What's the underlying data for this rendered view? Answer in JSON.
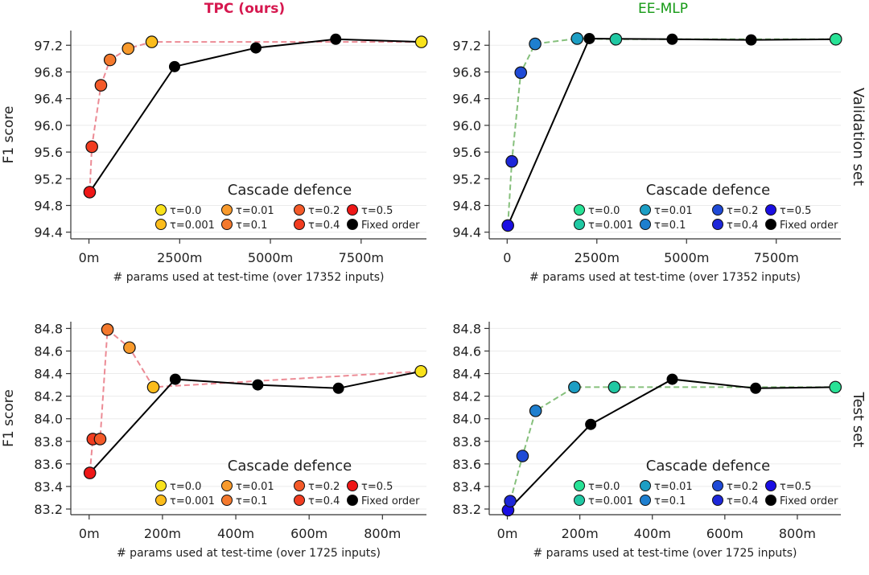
{
  "figure": {
    "col_titles": [
      {
        "text": "TPC (ours)",
        "color": "#d6184f"
      },
      {
        "text": "EE-MLP",
        "color": "#159a15"
      }
    ],
    "row_labels": [
      "Validation set",
      "Test set"
    ]
  },
  "legend": {
    "title": "Cascade defence",
    "entries": [
      "τ=0.0",
      "τ=0.01",
      "τ=0.2",
      "τ=0.5",
      "τ=0.001",
      "τ=0.1",
      "τ=0.4",
      "Fixed order"
    ]
  },
  "palettes": {
    "TPC": [
      "#f9e21b",
      "#fbbc1b",
      "#f89a2c",
      "#f4792d",
      "#f45a29",
      "#f13c20",
      "#ee1717"
    ],
    "EE-MLP": [
      "#28e296",
      "#20c8a3",
      "#1c9ec4",
      "#1e7fcf",
      "#1f4ad6",
      "#1d27d9",
      "#1a0ee3"
    ],
    "fixed": "#000000",
    "dash_TPC": "#ec8b95",
    "dash_EE": "#86c07c"
  },
  "chart_data": [
    {
      "type": "line",
      "model": "TPC",
      "split": "Validation set",
      "ylabel": "F1 score",
      "xlabel": "# params used at test-time (over 17352 inputs)",
      "xlim": [
        -500,
        9300
      ],
      "ylim": [
        94.3,
        97.42
      ],
      "xticks": [
        0,
        2500,
        5000,
        7500
      ],
      "xtick_labels": [
        "0m",
        "2500m",
        "5000m",
        "7500m"
      ],
      "yticks": [
        94.4,
        94.8,
        95.2,
        95.6,
        96.0,
        96.4,
        96.8,
        97.2
      ],
      "ytick_labels": [
        "94.4",
        "94.8",
        "95.2",
        "95.6",
        "96.0",
        "96.4",
        "96.8",
        "97.2"
      ],
      "cascade": [
        {
          "tau": "τ=0.5",
          "x": 20,
          "y": 95.0
        },
        {
          "tau": "τ=0.4",
          "x": 80,
          "y": 95.68
        },
        {
          "tau": "τ=0.2",
          "x": 330,
          "y": 96.6
        },
        {
          "tau": "τ=0.1",
          "x": 580,
          "y": 96.98
        },
        {
          "tau": "τ=0.01",
          "x": 1080,
          "y": 97.15
        },
        {
          "tau": "τ=0.001",
          "x": 1730,
          "y": 97.25
        },
        {
          "tau": "τ=0.0",
          "x": 9160,
          "y": 97.25
        }
      ],
      "fixed_order": {
        "x": [
          20,
          2360,
          4600,
          6800,
          9160
        ],
        "y": [
          95.0,
          96.88,
          97.16,
          97.29,
          97.25
        ]
      }
    },
    {
      "type": "line",
      "model": "EE-MLP",
      "split": "Validation set",
      "ylabel": "",
      "xlabel": "# params used at test-time (over 17352 inputs)",
      "xlim": [
        -500,
        9300
      ],
      "ylim": [
        94.3,
        97.42
      ],
      "xticks": [
        0,
        2500,
        5000,
        7500
      ],
      "xtick_labels": [
        "0",
        "2500m",
        "5000m",
        "7500m"
      ],
      "yticks": [
        94.4,
        94.8,
        95.2,
        95.6,
        96.0,
        96.4,
        96.8,
        97.2
      ],
      "ytick_labels": [
        "94.4",
        "94.8",
        "95.2",
        "95.6",
        "96.0",
        "96.4",
        "96.8",
        "97.2"
      ],
      "cascade": [
        {
          "tau": "τ=0.5",
          "x": 20,
          "y": 94.5
        },
        {
          "tau": "τ=0.4",
          "x": 130,
          "y": 95.46
        },
        {
          "tau": "τ=0.2",
          "x": 380,
          "y": 96.79
        },
        {
          "tau": "τ=0.1",
          "x": 780,
          "y": 97.22
        },
        {
          "tau": "τ=0.01",
          "x": 1950,
          "y": 97.3
        },
        {
          "tau": "τ=0.001",
          "x": 3030,
          "y": 97.29
        },
        {
          "tau": "τ=0.0",
          "x": 9160,
          "y": 97.29
        }
      ],
      "fixed_order": {
        "x": [
          20,
          2290,
          4600,
          6800,
          9160
        ],
        "y": [
          94.5,
          97.3,
          97.29,
          97.28,
          97.29
        ]
      }
    },
    {
      "type": "line",
      "model": "TPC",
      "split": "Test set",
      "ylabel": "F1 score",
      "xlabel": "# params used at test-time (over 1725 inputs)",
      "xlim": [
        -50,
        920
      ],
      "ylim": [
        83.15,
        84.86
      ],
      "xticks": [
        0,
        200,
        400,
        600,
        800
      ],
      "xtick_labels": [
        "0m",
        "200m",
        "400m",
        "600m",
        "800m"
      ],
      "yticks": [
        83.2,
        83.4,
        83.6,
        83.8,
        84.0,
        84.2,
        84.4,
        84.6,
        84.8
      ],
      "ytick_labels": [
        "83.2",
        "83.4",
        "83.6",
        "83.8",
        "84.0",
        "84.2",
        "84.4",
        "84.6",
        "84.8"
      ],
      "cascade": [
        {
          "tau": "τ=0.5",
          "x": 2,
          "y": 83.52
        },
        {
          "tau": "τ=0.4",
          "x": 10,
          "y": 83.82
        },
        {
          "tau": "τ=0.2",
          "x": 30,
          "y": 83.82
        },
        {
          "tau": "τ=0.1",
          "x": 50,
          "y": 84.79
        },
        {
          "tau": "τ=0.01",
          "x": 110,
          "y": 84.63
        },
        {
          "tau": "τ=0.001",
          "x": 175,
          "y": 84.28
        },
        {
          "tau": "τ=0.0",
          "x": 905,
          "y": 84.42
        }
      ],
      "fixed_order": {
        "x": [
          2,
          235,
          460,
          680,
          905
        ],
        "y": [
          83.52,
          84.35,
          84.3,
          84.27,
          84.42
        ]
      }
    },
    {
      "type": "line",
      "model": "EE-MLP",
      "split": "Test set",
      "ylabel": "",
      "xlabel": "# params used at test-time (over 1725 inputs)",
      "xlim": [
        -50,
        920
      ],
      "ylim": [
        83.15,
        84.86
      ],
      "xticks": [
        0,
        200,
        400,
        600,
        800
      ],
      "xtick_labels": [
        "0m",
        "200m",
        "400m",
        "600m",
        "800m"
      ],
      "yticks": [
        83.2,
        83.4,
        83.6,
        83.8,
        84.0,
        84.2,
        84.4,
        84.6,
        84.8
      ],
      "ytick_labels": [
        "83.2",
        "83.4",
        "83.6",
        "83.8",
        "84.0",
        "84.2",
        "84.4",
        "84.6",
        "84.8"
      ],
      "cascade": [
        {
          "tau": "τ=0.5",
          "x": 2,
          "y": 83.19
        },
        {
          "tau": "τ=0.4",
          "x": 8,
          "y": 83.27
        },
        {
          "tau": "τ=0.2",
          "x": 42,
          "y": 83.67
        },
        {
          "tau": "τ=0.1",
          "x": 78,
          "y": 84.07
        },
        {
          "tau": "τ=0.01",
          "x": 185,
          "y": 84.28
        },
        {
          "tau": "τ=0.001",
          "x": 295,
          "y": 84.28
        },
        {
          "tau": "τ=0.0",
          "x": 905,
          "y": 84.28
        }
      ],
      "fixed_order": {
        "x": [
          2,
          230,
          455,
          685,
          905
        ],
        "y": [
          83.19,
          83.95,
          84.35,
          84.27,
          84.28
        ]
      }
    }
  ]
}
